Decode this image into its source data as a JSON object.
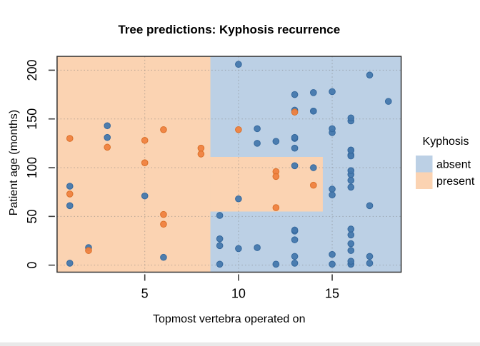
{
  "chart": {
    "title": "Tree predictions: Kyphosis recurrence",
    "xlabel": "Topmost vertebra operated on",
    "ylabel": "Patient age (months)"
  },
  "legend": {
    "title": "Kyphosis",
    "items": [
      {
        "label": "absent",
        "color": "#bcd0e5"
      },
      {
        "label": "present",
        "color": "#fbd3b2"
      }
    ]
  },
  "chart_data": {
    "type": "scatter",
    "title": "Tree predictions: Kyphosis recurrence",
    "xlabel": "Topmost vertebra operated on",
    "ylabel": "Patient age (months)",
    "xlim": [
      0.32,
      18.68
    ],
    "ylim": [
      -7.2,
      214.2
    ],
    "xticks": [
      5,
      10,
      15
    ],
    "yticks": [
      0,
      50,
      100,
      150,
      200
    ],
    "grid": "dotted",
    "legend_position": "right",
    "region_colors": {
      "absent": "#bcd0e5",
      "present": "#fbd3b2"
    },
    "point_colors": {
      "absent": "#4478ad",
      "present": "#f08240"
    },
    "point_stroke_colors": {
      "absent": "#35689d",
      "present": "#da7028"
    },
    "decision_regions": [
      {
        "kyphosis": "absent",
        "x": [
          0.32,
          18.68
        ],
        "y": [
          -7.2,
          214.2
        ]
      },
      {
        "kyphosis": "present",
        "x": [
          0.32,
          8.5
        ],
        "y": [
          -7.2,
          214.2
        ]
      },
      {
        "kyphosis": "present",
        "x": [
          8.5,
          14.5
        ],
        "y": [
          55,
          111
        ]
      }
    ],
    "point_fields": [
      "start_vertebra",
      "age_months",
      "kyphosis"
    ],
    "points": [
      [
        5,
        71,
        "absent"
      ],
      [
        14,
        158,
        "absent"
      ],
      [
        5,
        128,
        "present"
      ],
      [
        1,
        2,
        "absent"
      ],
      [
        15,
        1,
        "absent"
      ],
      [
        16,
        1,
        "absent"
      ],
      [
        17,
        61,
        "absent"
      ],
      [
        16,
        37,
        "absent"
      ],
      [
        16,
        113,
        "absent"
      ],
      [
        12,
        59,
        "present"
      ],
      [
        14,
        82,
        "present"
      ],
      [
        16,
        148,
        "absent"
      ],
      [
        2,
        18,
        "absent"
      ],
      [
        12,
        1,
        "absent"
      ],
      [
        18,
        168,
        "absent"
      ],
      [
        16,
        1,
        "absent"
      ],
      [
        15,
        78,
        "absent"
      ],
      [
        13,
        175,
        "absent"
      ],
      [
        16,
        80,
        "absent"
      ],
      [
        9,
        27,
        "absent"
      ],
      [
        16,
        22,
        "absent"
      ],
      [
        5,
        105,
        "present"
      ],
      [
        12,
        96,
        "present"
      ],
      [
        3,
        131,
        "absent"
      ],
      [
        2,
        15,
        "present"
      ],
      [
        13,
        9,
        "absent"
      ],
      [
        6,
        8,
        "absent"
      ],
      [
        14,
        100,
        "absent"
      ],
      [
        16,
        4,
        "absent"
      ],
      [
        16,
        151,
        "absent"
      ],
      [
        16,
        31,
        "absent"
      ],
      [
        11,
        125,
        "absent"
      ],
      [
        13,
        130,
        "absent"
      ],
      [
        16,
        112,
        "absent"
      ],
      [
        11,
        140,
        "absent"
      ],
      [
        16,
        93,
        "absent"
      ],
      [
        9,
        1,
        "absent"
      ],
      [
        6,
        52,
        "present"
      ],
      [
        9,
        20,
        "absent"
      ],
      [
        12,
        91,
        "present"
      ],
      [
        1,
        73,
        "present"
      ],
      [
        13,
        35,
        "absent"
      ],
      [
        3,
        143,
        "absent"
      ],
      [
        1,
        61,
        "absent"
      ],
      [
        16,
        97,
        "absent"
      ],
      [
        10,
        139,
        "present"
      ],
      [
        15,
        136,
        "absent"
      ],
      [
        13,
        131,
        "absent"
      ],
      [
        3,
        121,
        "present"
      ],
      [
        14,
        177,
        "absent"
      ],
      [
        10,
        68,
        "absent"
      ],
      [
        17,
        9,
        "absent"
      ],
      [
        6,
        139,
        "present"
      ],
      [
        17,
        2,
        "absent"
      ],
      [
        15,
        140,
        "absent"
      ],
      [
        15,
        72,
        "absent"
      ],
      [
        13,
        2,
        "absent"
      ],
      [
        8,
        120,
        "present"
      ],
      [
        9,
        51,
        "absent"
      ],
      [
        13,
        102,
        "absent"
      ],
      [
        1,
        130,
        "present"
      ],
      [
        8,
        114,
        "present"
      ],
      [
        1,
        81,
        "absent"
      ],
      [
        16,
        118,
        "absent"
      ],
      [
        16,
        118,
        "absent"
      ],
      [
        10,
        17,
        "absent"
      ],
      [
        17,
        195,
        "absent"
      ],
      [
        13,
        159,
        "absent"
      ],
      [
        11,
        18,
        "absent"
      ],
      [
        16,
        15,
        "absent"
      ],
      [
        14,
        158,
        "absent"
      ],
      [
        12,
        127,
        "absent"
      ],
      [
        16,
        87,
        "absent"
      ],
      [
        10,
        206,
        "absent"
      ],
      [
        15,
        11,
        "absent"
      ],
      [
        15,
        178,
        "absent"
      ],
      [
        13,
        157,
        "present"
      ],
      [
        13,
        26,
        "absent"
      ],
      [
        13,
        120,
        "absent"
      ],
      [
        6,
        42,
        "present"
      ],
      [
        13,
        36,
        "absent"
      ]
    ]
  }
}
